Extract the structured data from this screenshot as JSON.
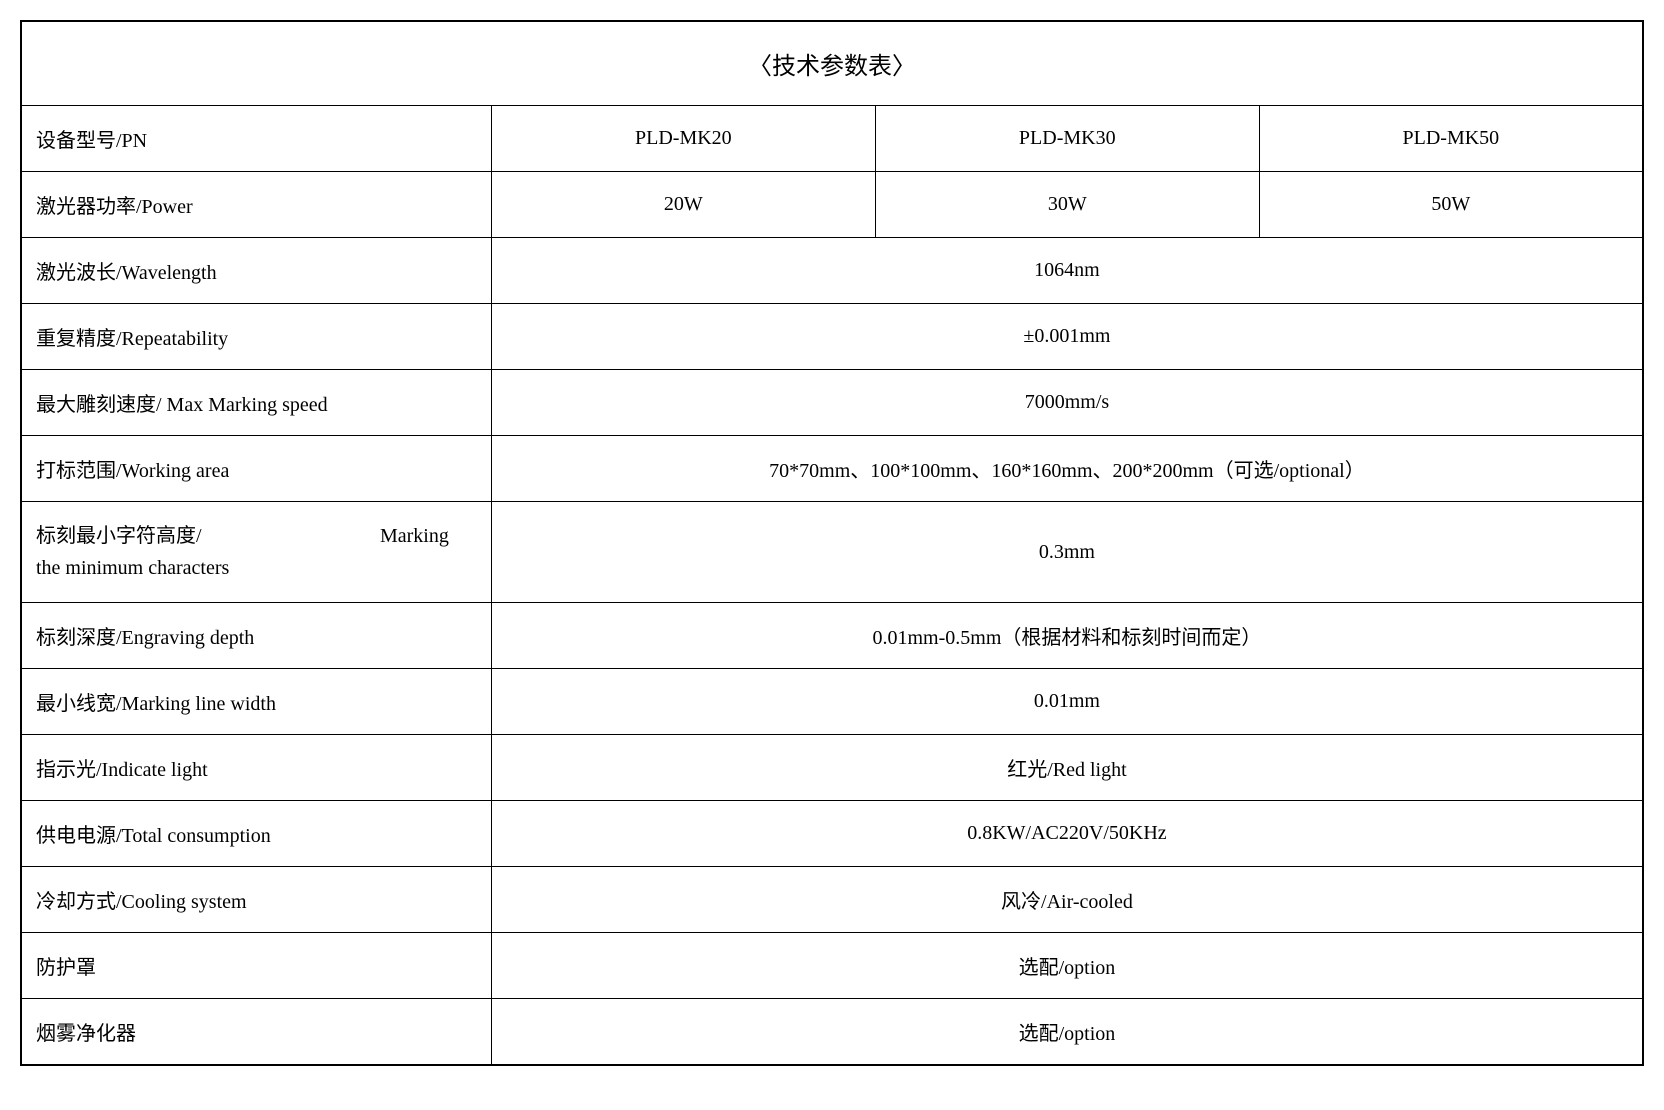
{
  "table": {
    "title": "〈技术参数表〉",
    "border_color": "#000000",
    "background_color": "#ffffff",
    "text_color": "#000000",
    "title_fontsize": 24,
    "body_fontsize": 20,
    "font_family": "SimSun",
    "rows": [
      {
        "label": "设备型号/PN",
        "values": [
          "PLD-MK20",
          "PLD-MK30",
          "PLD-MK50"
        ],
        "span": 3
      },
      {
        "label": "激光器功率/Power",
        "values": [
          "20W",
          "30W",
          "50W"
        ],
        "span": 3
      },
      {
        "label": "激光波长/Wavelength",
        "values": [
          "1064nm"
        ],
        "span": 1
      },
      {
        "label": "重复精度/Repeatability",
        "values": [
          "±0.001mm"
        ],
        "span": 1
      },
      {
        "label": "最大雕刻速度/ Max Marking speed",
        "values": [
          "7000mm/s"
        ],
        "span": 1
      },
      {
        "label": "打标范围/Working area",
        "values": [
          "70*70mm、100*100mm、160*160mm、200*200mm（可选/optional）"
        ],
        "span": 1
      },
      {
        "label_line1": "标刻最小字符高度/",
        "label_line1_right": "Marking",
        "label_line2": "the minimum characters",
        "values": [
          "0.3mm"
        ],
        "span": 1,
        "multiline": true
      },
      {
        "label": "标刻深度/Engraving depth",
        "values": [
          "0.01mm-0.5mm（根据材料和标刻时间而定）"
        ],
        "span": 1
      },
      {
        "label": "最小线宽/Marking line width",
        "values": [
          "0.01mm"
        ],
        "span": 1
      },
      {
        "label": "指示光/Indicate light",
        "values": [
          "红光/Red light"
        ],
        "span": 1
      },
      {
        "label": "供电电源/Total consumption",
        "values": [
          "0.8KW/AC220V/50KHz"
        ],
        "span": 1
      },
      {
        "label": "冷却方式/Cooling system",
        "values": [
          "风冷/Air-cooled"
        ],
        "span": 1
      },
      {
        "label": "防护罩",
        "values": [
          "选配/option"
        ],
        "span": 1
      },
      {
        "label": "烟雾净化器",
        "values": [
          "选配/option"
        ],
        "span": 1
      }
    ]
  }
}
